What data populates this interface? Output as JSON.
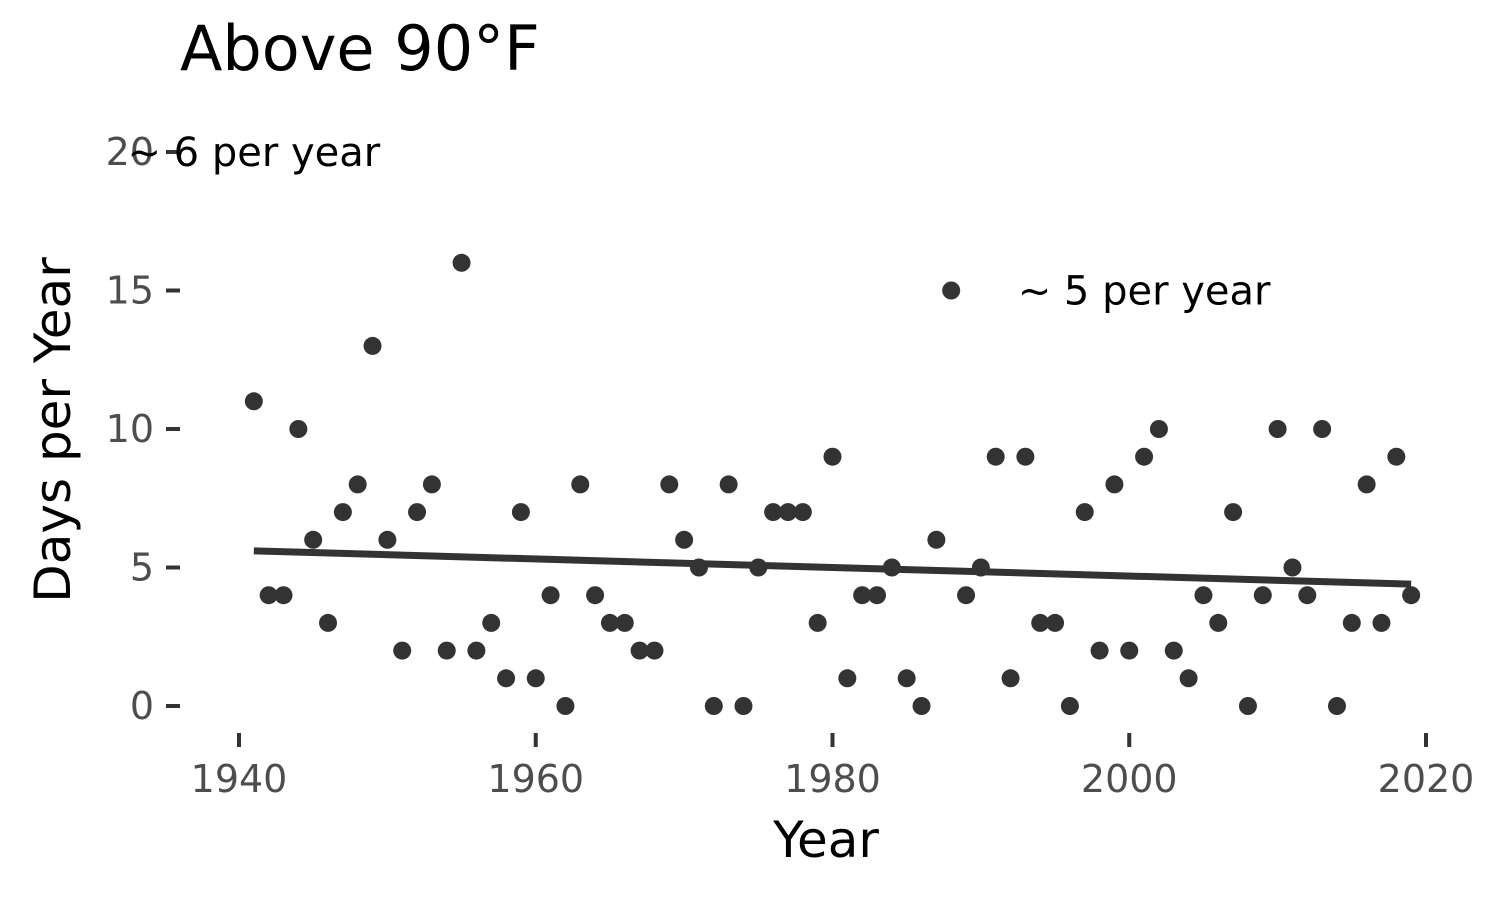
{
  "chart_data": {
    "type": "scatter",
    "title": "Above 90°F",
    "xlabel": "Year",
    "ylabel": "Days per Year",
    "xlim": [
      1936,
      1941,
      2021
    ],
    "ylim": [
      -1,
      20
    ],
    "x_ticks": [
      1940,
      1960,
      1980,
      2000,
      2020
    ],
    "y_ticks": [
      0,
      5,
      10,
      15,
      20
    ],
    "grid": false,
    "points": [
      [
        1941,
        11
      ],
      [
        1942,
        4
      ],
      [
        1943,
        4
      ],
      [
        1944,
        10
      ],
      [
        1945,
        6
      ],
      [
        1946,
        3
      ],
      [
        1947,
        7
      ],
      [
        1948,
        8
      ],
      [
        1949,
        13
      ],
      [
        1950,
        6
      ],
      [
        1951,
        2
      ],
      [
        1952,
        7
      ],
      [
        1953,
        8
      ],
      [
        1954,
        2
      ],
      [
        1955,
        16
      ],
      [
        1956,
        2
      ],
      [
        1957,
        3
      ],
      [
        1958,
        1
      ],
      [
        1959,
        7
      ],
      [
        1960,
        1
      ],
      [
        1961,
        4
      ],
      [
        1962,
        0
      ],
      [
        1963,
        8
      ],
      [
        1964,
        4
      ],
      [
        1965,
        3
      ],
      [
        1966,
        3
      ],
      [
        1967,
        2
      ],
      [
        1968,
        2
      ],
      [
        1969,
        8
      ],
      [
        1970,
        6
      ],
      [
        1971,
        5
      ],
      [
        1972,
        0
      ],
      [
        1973,
        8
      ],
      [
        1974,
        0
      ],
      [
        1975,
        5
      ],
      [
        1976,
        7
      ],
      [
        1977,
        7
      ],
      [
        1978,
        7
      ],
      [
        1979,
        3
      ],
      [
        1980,
        9
      ],
      [
        1981,
        1
      ],
      [
        1982,
        4
      ],
      [
        1983,
        4
      ],
      [
        1984,
        5
      ],
      [
        1985,
        1
      ],
      [
        1986,
        0
      ],
      [
        1987,
        6
      ],
      [
        1988,
        15
      ],
      [
        1989,
        4
      ],
      [
        1990,
        5
      ],
      [
        1991,
        9
      ],
      [
        1992,
        1
      ],
      [
        1993,
        9
      ],
      [
        1994,
        3
      ],
      [
        1995,
        3
      ],
      [
        1996,
        0
      ],
      [
        1997,
        7
      ],
      [
        1998,
        2
      ],
      [
        1999,
        8
      ],
      [
        2000,
        2
      ],
      [
        2001,
        9
      ],
      [
        2002,
        10
      ],
      [
        2003,
        2
      ],
      [
        2004,
        1
      ],
      [
        2005,
        4
      ],
      [
        2006,
        3
      ],
      [
        2007,
        7
      ],
      [
        2008,
        0
      ],
      [
        2009,
        4
      ],
      [
        2010,
        10
      ],
      [
        2011,
        5
      ],
      [
        2012,
        4
      ],
      [
        2013,
        10
      ],
      [
        2014,
        0
      ],
      [
        2015,
        3
      ],
      [
        2016,
        8
      ],
      [
        2017,
        3
      ],
      [
        2018,
        9
      ],
      [
        2019,
        4
      ]
    ],
    "trend_line": {
      "x": [
        1941,
        2019
      ],
      "y": [
        5.6,
        4.4
      ]
    },
    "annotations": [
      {
        "text": "~ 6 per year",
        "x": 1941,
        "y": 20
      },
      {
        "text": "~ 5 per year",
        "x": 2001,
        "y": 15
      }
    ],
    "colors": {
      "points": "#333333",
      "line": "#333333",
      "tick_label": "#4d4d4d"
    }
  }
}
